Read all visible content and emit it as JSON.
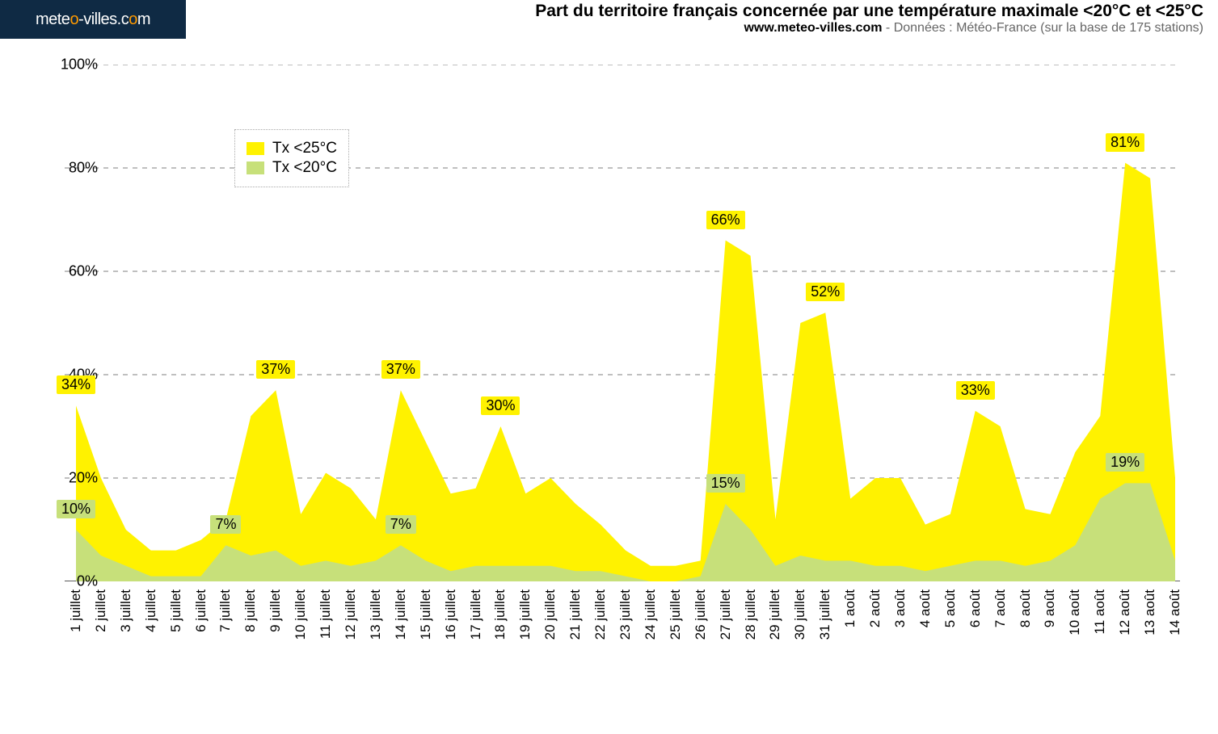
{
  "logo": {
    "left": "mete",
    "o1": "o",
    "mid": "-villes.c",
    "o2": "o",
    "right": "m"
  },
  "title": "Part du territoire français concernée par une température maximale <20°C et <25°C",
  "subtitle_bold": "www.meteo-villes.com",
  "subtitle_rest": " - Données : Météo-France (sur la base de 175 stations)",
  "legend": {
    "s1_label": "Tx <25°C",
    "s2_label": "Tx <20°C"
  },
  "chart": {
    "type": "area",
    "background_color": "#ffffff",
    "grid_color": "#999999",
    "grid_dash": "6,6",
    "ylim": [
      0,
      100
    ],
    "ytick_step": 20,
    "ytick_suffix": "%",
    "series25_color": "#fff200",
    "series20_color": "#c7e07a",
    "annot25_bg": "#fff200",
    "annot20_bg": "#c7e07a",
    "annot_text_color": "#000000",
    "label_fontsize": 18,
    "x_labels": [
      "1 juillet",
      "2 juillet",
      "3 juillet",
      "4 juillet",
      "5 juillet",
      "6 juillet",
      "7 juillet",
      "8 juillet",
      "9 juillet",
      "10 juillet",
      "11 juillet",
      "12 juillet",
      "13 juillet",
      "14 juillet",
      "15 juillet",
      "16 juillet",
      "17 juillet",
      "18 juillet",
      "19 juillet",
      "20 juillet",
      "21 juillet",
      "22 juillet",
      "23 juillet",
      "24 juillet",
      "25 juillet",
      "26 juillet",
      "27 juillet",
      "28 juillet",
      "29 juillet",
      "30 juillet",
      "31 juillet",
      "1 août",
      "2 août",
      "3 août",
      "4 août",
      "5 août",
      "6 août",
      "7 août",
      "8 août",
      "9 août",
      "10 août",
      "11 août",
      "12 août",
      "13 août",
      "14 août"
    ],
    "series25": [
      34,
      20,
      10,
      6,
      6,
      8,
      12,
      32,
      37,
      13,
      21,
      18,
      12,
      37,
      27,
      17,
      18,
      30,
      17,
      20,
      15,
      11,
      6,
      3,
      3,
      4,
      66,
      63,
      12,
      50,
      52,
      16,
      20,
      20,
      11,
      13,
      33,
      30,
      14,
      13,
      25,
      32,
      81,
      78,
      20
    ],
    "series20": [
      10,
      5,
      3,
      1,
      1,
      1,
      7,
      5,
      6,
      3,
      4,
      3,
      4,
      7,
      4,
      2,
      3,
      3,
      3,
      3,
      2,
      2,
      1,
      0,
      0,
      1,
      15,
      10,
      3,
      5,
      4,
      4,
      3,
      3,
      2,
      3,
      4,
      4,
      3,
      4,
      7,
      16,
      19,
      19,
      4
    ],
    "annotations25": [
      {
        "i": 0,
        "text": "34%"
      },
      {
        "i": 8,
        "text": "37%"
      },
      {
        "i": 13,
        "text": "37%"
      },
      {
        "i": 17,
        "text": "30%"
      },
      {
        "i": 26,
        "text": "66%"
      },
      {
        "i": 30,
        "text": "52%"
      },
      {
        "i": 36,
        "text": "33%"
      },
      {
        "i": 42,
        "text": "81%"
      }
    ],
    "annotations20": [
      {
        "i": 0,
        "text": "10%"
      },
      {
        "i": 6,
        "text": "7%"
      },
      {
        "i": 13,
        "text": "7%"
      },
      {
        "i": 26,
        "text": "15%"
      },
      {
        "i": 42,
        "text": "19%"
      }
    ]
  }
}
